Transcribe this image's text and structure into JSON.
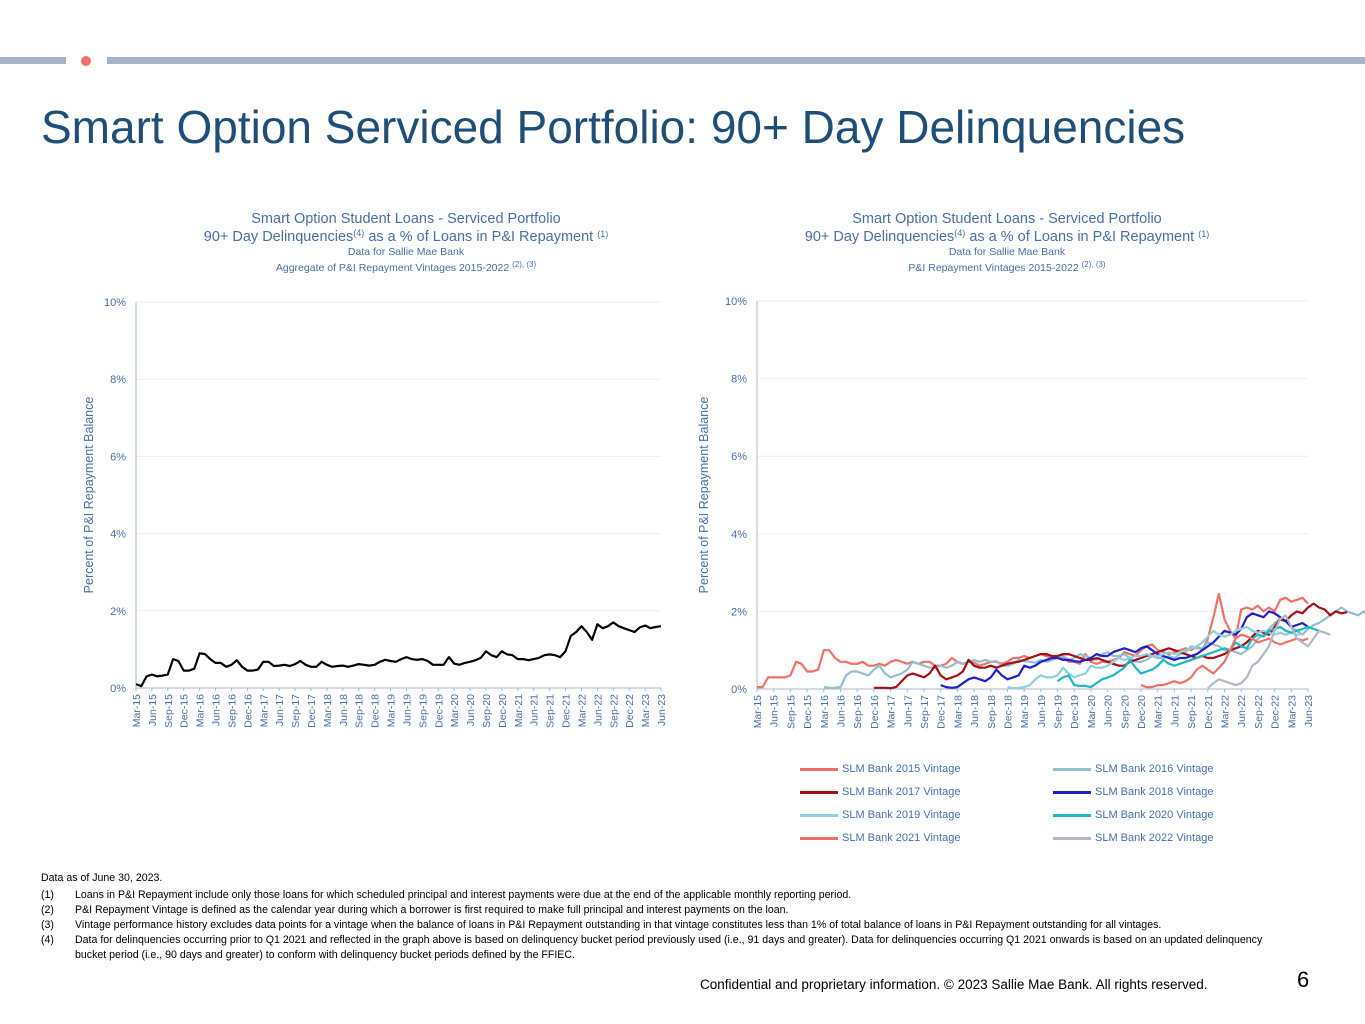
{
  "header": {
    "title": "Smart Option Serviced Portfolio: 90+ Day Delinquencies",
    "bar_color": "#a3b4cc",
    "dot_color": "#f07167"
  },
  "chart_data": [
    {
      "type": "line",
      "title_line1": "Smart Option Student Loans - Serviced Portfolio",
      "title_line2": "90+ Day Delinquencies",
      "title_line2_sup": "(4)",
      "title_line2_rest": " as a % of Loans in P&I Repayment ",
      "title_line2_sup2": "(1)",
      "subtitle1": "Data for Sallie Mae Bank",
      "subtitle2": "Aggregate of P&I Repayment Vintages 2015-2022 ",
      "subtitle2_sup": "(2), (3)",
      "ylabel": "Percent of P&I Repayment  Balance",
      "ylim": [
        0,
        10
      ],
      "y_ticks": [
        "0%",
        "2%",
        "4%",
        "6%",
        "8%",
        "10%"
      ],
      "x_start": "2015-03",
      "x_end": "2023-06",
      "x_ticks": [
        "Mar-15",
        "Jun-15",
        "Sep-15",
        "Dec-15",
        "Mar-16",
        "Jun-16",
        "Sep-16",
        "Dec-16",
        "Mar-17",
        "Jun-17",
        "Sep-17",
        "Dec-17",
        "Mar-18",
        "Jun-18",
        "Sep-18",
        "Dec-18",
        "Mar-19",
        "Jun-19",
        "Sep-19",
        "Dec-19",
        "Mar-20",
        "Jun-20",
        "Sep-20",
        "Dec-20",
        "Mar-21",
        "Jun-21",
        "Sep-21",
        "Dec-21",
        "Mar-22",
        "Jun-22",
        "Sep-22",
        "Dec-22",
        "Mar-23",
        "Jun-23"
      ],
      "series": [
        {
          "name": "Aggregate",
          "color": "#000000",
          "values": [
            0.1,
            0.05,
            0.3,
            0.35,
            0.3,
            0.32,
            0.35,
            0.75,
            0.7,
            0.45,
            0.45,
            0.5,
            0.9,
            0.88,
            0.75,
            0.65,
            0.65,
            0.55,
            0.6,
            0.72,
            0.55,
            0.45,
            0.45,
            0.48,
            0.68,
            0.68,
            0.57,
            0.58,
            0.6,
            0.57,
            0.62,
            0.7,
            0.6,
            0.55,
            0.55,
            0.68,
            0.6,
            0.55,
            0.57,
            0.58,
            0.55,
            0.58,
            0.62,
            0.6,
            0.58,
            0.6,
            0.68,
            0.73,
            0.7,
            0.68,
            0.75,
            0.8,
            0.75,
            0.73,
            0.75,
            0.7,
            0.6,
            0.6,
            0.6,
            0.8,
            0.63,
            0.6,
            0.65,
            0.68,
            0.72,
            0.78,
            0.95,
            0.85,
            0.8,
            0.95,
            0.87,
            0.85,
            0.75,
            0.75,
            0.72,
            0.75,
            0.78,
            0.85,
            0.87,
            0.85,
            0.8,
            0.95,
            1.35,
            1.45,
            1.6,
            1.45,
            1.25,
            1.65,
            1.55,
            1.6,
            1.7,
            1.6,
            1.55,
            1.5,
            1.45,
            1.57,
            1.62,
            1.55,
            1.58,
            1.6
          ]
        }
      ]
    },
    {
      "type": "line",
      "title_line1": "Smart Option Student Loans - Serviced Portfolio",
      "title_line2": "90+ Day Delinquencies",
      "title_line2_sup": "(4)",
      "title_line2_rest": " as a % of Loans in P&I Repayment ",
      "title_line2_sup2": "(1)",
      "subtitle1": "Data for Sallie Mae Bank",
      "subtitle2": "P&I Repayment Vintages 2015-2022 ",
      "subtitle2_sup": "(2), (3)",
      "ylabel": "Percent of P&I Repayment  Balance",
      "ylim": [
        0,
        10
      ],
      "y_ticks": [
        "0%",
        "2%",
        "4%",
        "6%",
        "8%",
        "10%"
      ],
      "x_start": "2015-03",
      "x_end": "2023-06",
      "x_ticks": [
        "Mar-15",
        "Jun-15",
        "Sep-15",
        "Dec-15",
        "Mar-16",
        "Jun-16",
        "Sep-16",
        "Dec-16",
        "Mar-17",
        "Jun-17",
        "Sep-17",
        "Dec-17",
        "Mar-18",
        "Jun-18",
        "Sep-18",
        "Dec-18",
        "Mar-19",
        "Jun-19",
        "Sep-19",
        "Dec-19",
        "Mar-20",
        "Jun-20",
        "Sep-20",
        "Dec-20",
        "Mar-21",
        "Jun-21",
        "Sep-21",
        "Dec-21",
        "Mar-22",
        "Jun-22",
        "Sep-22",
        "Dec-22",
        "Mar-23",
        "Jun-23"
      ],
      "legend_placement": "bottom",
      "series": [
        {
          "name": "SLM Bank 2015 Vintage",
          "color": "#f07167",
          "start": "2015-03",
          "values": [
            0.05,
            0.05,
            0.3,
            0.3,
            0.3,
            0.3,
            0.35,
            0.7,
            0.65,
            0.45,
            0.45,
            0.5,
            1.0,
            1.0,
            0.8,
            0.7,
            0.7,
            0.65,
            0.65,
            0.7,
            0.6,
            0.6,
            0.65,
            0.6,
            0.7,
            0.75,
            0.7,
            0.65,
            0.7,
            0.65,
            0.7,
            0.7,
            0.6,
            0.6,
            0.65,
            0.8,
            0.7,
            0.65,
            0.7,
            0.68,
            0.6,
            0.65,
            0.7,
            0.7,
            0.65,
            0.7,
            0.8,
            0.8,
            0.85,
            0.8,
            0.85,
            0.9,
            0.85,
            0.8,
            0.85,
            0.8,
            0.7,
            0.7,
            0.65,
            0.9,
            0.7,
            0.65,
            0.7,
            0.7,
            0.75,
            0.8,
            0.95,
            0.9,
            0.85,
            1.0,
            1.1,
            1.15,
            1.0,
            0.95,
            0.9,
            0.95,
            1.0,
            1.05,
            1.0,
            1.1,
            1.0,
            1.3,
            1.85,
            2.45,
            1.8,
            1.5,
            1.3,
            2.05,
            2.1,
            2.05,
            2.15,
            2.0,
            2.1,
            2.0,
            2.3,
            2.35,
            2.25,
            2.3,
            2.35,
            2.2
          ]
        },
        {
          "name": "SLM Bank 2016 Vintage",
          "color": "#93bfcf",
          "start": "2016-03",
          "values": [
            0.05,
            0.03,
            0.03,
            0.05,
            0.35,
            0.45,
            0.45,
            0.4,
            0.35,
            0.5,
            0.6,
            0.4,
            0.3,
            0.35,
            0.4,
            0.5,
            0.7,
            0.65,
            0.6,
            0.55,
            0.55,
            0.6,
            0.55,
            0.6,
            0.7,
            0.65,
            0.7,
            0.75,
            0.7,
            0.75,
            0.7,
            0.72,
            0.6,
            0.6,
            0.65,
            0.75,
            0.72,
            0.7,
            0.68,
            0.75,
            0.7,
            0.75,
            0.8,
            0.85,
            0.75,
            0.8,
            0.9,
            0.85,
            0.8,
            0.75,
            0.9,
            0.95,
            0.85,
            0.85,
            0.9,
            0.8,
            0.7,
            0.7,
            0.75,
            0.85,
            0.8,
            0.8,
            0.85,
            0.8,
            0.9,
            0.95,
            1.1,
            1.05,
            1.05,
            1.2,
            1.15,
            1.1,
            1.0,
            1.0,
            0.95,
            0.9,
            1.0,
            1.1,
            1.3,
            1.4,
            1.55,
            1.7,
            1.8,
            1.75,
            1.6,
            1.5,
            1.4,
            1.55,
            1.65,
            1.7,
            1.8,
            1.9,
            2.0,
            2.1,
            2.0,
            1.95,
            1.9,
            2.0,
            1.85,
            1.9
          ]
        },
        {
          "name": "SLM Bank 2017 Vintage",
          "color": "#a50f15",
          "start": "2016-12",
          "values": [
            0.03,
            0.03,
            0.03,
            0.02,
            0.05,
            0.2,
            0.35,
            0.4,
            0.35,
            0.3,
            0.4,
            0.6,
            0.35,
            0.25,
            0.3,
            0.35,
            0.45,
            0.75,
            0.6,
            0.55,
            0.55,
            0.6,
            0.55,
            0.6,
            0.65,
            0.68,
            0.7,
            0.75,
            0.8,
            0.85,
            0.9,
            0.9,
            0.85,
            0.85,
            0.9,
            0.9,
            0.85,
            0.8,
            0.75,
            0.75,
            0.8,
            0.75,
            0.7,
            0.65,
            0.6,
            0.6,
            0.7,
            0.75,
            0.8,
            0.85,
            0.9,
            0.95,
            1.0,
            1.05,
            1.0,
            0.95,
            0.9,
            0.85,
            0.8,
            0.85,
            0.8,
            0.8,
            0.85,
            0.9,
            1.0,
            1.05,
            1.1,
            1.2,
            1.35,
            1.5,
            1.45,
            1.4,
            1.6,
            1.8,
            1.75,
            1.9,
            2.0,
            1.95,
            2.1,
            2.2,
            2.1,
            2.05,
            1.9,
            2.0,
            1.95,
            1.98
          ]
        },
        {
          "name": "SLM Bank 2018 Vintage",
          "color": "#1f1fd1",
          "start": "2017-12",
          "values": [
            0.1,
            0.05,
            0.03,
            0.05,
            0.15,
            0.25,
            0.3,
            0.25,
            0.2,
            0.3,
            0.5,
            0.35,
            0.25,
            0.3,
            0.35,
            0.6,
            0.55,
            0.6,
            0.7,
            0.75,
            0.8,
            0.8,
            0.75,
            0.75,
            0.72,
            0.7,
            0.75,
            0.8,
            0.9,
            0.85,
            0.85,
            0.95,
            1.0,
            1.05,
            1.0,
            0.95,
            1.05,
            1.1,
            1.0,
            0.9,
            0.85,
            0.8,
            0.75,
            0.8,
            0.8,
            0.85,
            0.9,
            1.0,
            1.1,
            1.2,
            1.35,
            1.5,
            1.45,
            1.4,
            1.55,
            1.85,
            1.95,
            1.9,
            1.85,
            2.0,
            1.95,
            1.85,
            1.75,
            1.6,
            1.65,
            1.7,
            1.6
          ]
        },
        {
          "name": "SLM Bank 2019 Vintage",
          "color": "#8fd1dc",
          "start": "2018-12",
          "values": [
            0.05,
            0.02,
            0.03,
            0.05,
            0.1,
            0.25,
            0.35,
            0.3,
            0.3,
            0.35,
            0.55,
            0.4,
            0.3,
            0.35,
            0.4,
            0.6,
            0.55,
            0.55,
            0.6,
            0.7,
            0.8,
            0.75,
            0.8,
            0.85,
            0.85,
            0.9,
            0.85,
            0.85,
            0.9,
            0.95,
            0.9,
            0.95,
            1.0,
            1.05,
            1.1,
            1.2,
            1.35,
            1.5,
            1.4,
            1.35,
            1.4,
            1.5,
            1.55,
            1.6,
            1.5,
            1.45,
            1.5,
            1.45,
            1.4,
            1.45,
            1.4,
            1.45,
            1.4,
            1.42
          ]
        },
        {
          "name": "SLM Bank 2020 Vintage",
          "color": "#1cb8c4",
          "start": "2019-09",
          "values": [
            0.2,
            0.3,
            0.35,
            0.1,
            0.08,
            0.08,
            0.05,
            0.15,
            0.25,
            0.3,
            0.35,
            0.45,
            0.55,
            0.75,
            0.55,
            0.4,
            0.45,
            0.5,
            0.6,
            0.75,
            0.65,
            0.6,
            0.65,
            0.7,
            0.75,
            0.8,
            0.85,
            0.9,
            0.95,
            1.0,
            1.05,
            1.0,
            1.2,
            1.1,
            1.05,
            1.3,
            1.4,
            1.35,
            1.5,
            1.55,
            1.6,
            1.5,
            1.45,
            1.5,
            1.55,
            1.6,
            1.55,
            1.5
          ]
        },
        {
          "name": "SLM Bank 2021 Vintage",
          "color": "#f07167",
          "start": "2020-12",
          "values": [
            0.1,
            0.05,
            0.05,
            0.1,
            0.1,
            0.15,
            0.2,
            0.15,
            0.2,
            0.3,
            0.5,
            0.6,
            0.5,
            0.4,
            0.55,
            0.7,
            1.0,
            1.3,
            1.4,
            1.35,
            1.3,
            1.2,
            1.25,
            1.3,
            1.2,
            1.15,
            1.2,
            1.25,
            1.3,
            1.25,
            1.3
          ]
        },
        {
          "name": "SLM Bank 2022 Vintage",
          "color": "#b4b9c6",
          "start": "2021-12",
          "values": [
            0.02,
            0.15,
            0.25,
            0.2,
            0.15,
            0.1,
            0.15,
            0.3,
            0.6,
            0.7,
            0.9,
            1.1,
            1.5,
            1.8,
            1.9,
            1.6,
            1.3,
            1.2,
            1.1,
            1.3,
            1.5,
            1.45,
            1.4
          ]
        }
      ]
    }
  ],
  "notes": {
    "as_of": "Data as of June 30, 2023.",
    "items": [
      {
        "num": "(1)",
        "text": "Loans in P&I Repayment include only those loans for which scheduled principal and interest payments were due at the end of the applicable monthly reporting period."
      },
      {
        "num": "(2)",
        "text": "P&I Repayment Vintage is defined as the calendar year during which a borrower is first required to make full principal and interest payments on the loan."
      },
      {
        "num": "(3)",
        "text": "Vintage performance history excludes data points for a vintage when the balance of loans in P&I Repayment outstanding in that vintage constitutes less than 1% of total balance of loans in P&I Repayment outstanding for all vintages."
      },
      {
        "num": "(4)",
        "text": "Data for delinquencies occurring prior to Q1 2021 and reflected in the graph above is based on delinquency bucket period previously used (i.e., 91 days and greater).  Data for delinquencies occurring Q1 2021 onwards is based on an updated delinquency bucket period (i.e., 90 days and greater) to conform with delinquency bucket periods defined by the FFIEC."
      }
    ]
  },
  "footer": {
    "text": "Confidential and proprietary information. © 2023 Sallie Mae Bank. All rights reserved.",
    "page_number": "6"
  },
  "colors": {
    "title": "#1f4e79",
    "chart_text": "#4a6fa5",
    "axis": "#a9b8cf"
  }
}
